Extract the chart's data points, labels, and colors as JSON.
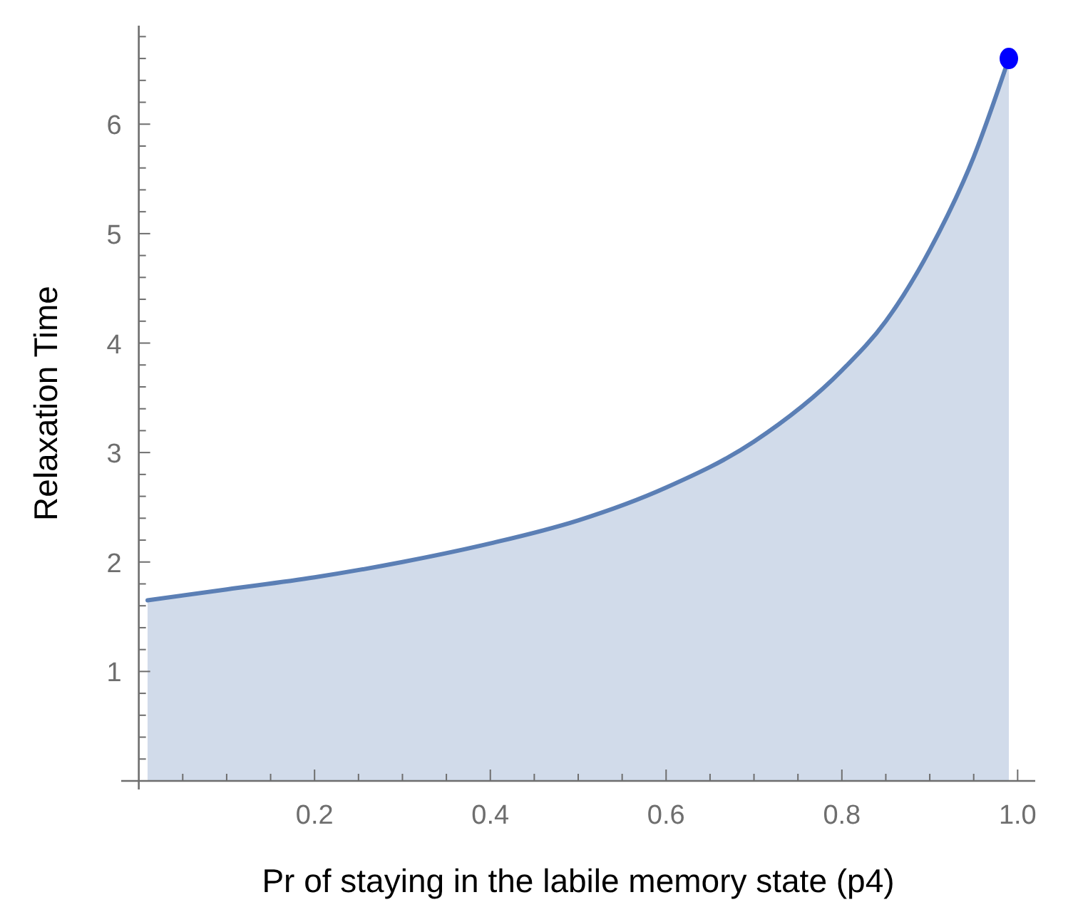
{
  "chart_data": {
    "type": "area",
    "xlabel": "Pr of staying in the labile memory state (p4)",
    "ylabel": "Relaxation Time",
    "xlim": [
      -0.02,
      1.02
    ],
    "ylim": [
      0,
      6.9
    ],
    "xticks": [
      {
        "value": 0.05,
        "label": null
      },
      {
        "value": 0.1,
        "label": null
      },
      {
        "value": 0.15,
        "label": null
      },
      {
        "value": 0.2,
        "label": "0.2"
      },
      {
        "value": 0.25,
        "label": null
      },
      {
        "value": 0.3,
        "label": null
      },
      {
        "value": 0.35,
        "label": null
      },
      {
        "value": 0.4,
        "label": "0.4"
      },
      {
        "value": 0.45,
        "label": null
      },
      {
        "value": 0.5,
        "label": null
      },
      {
        "value": 0.55,
        "label": null
      },
      {
        "value": 0.6,
        "label": "0.6"
      },
      {
        "value": 0.65,
        "label": null
      },
      {
        "value": 0.7,
        "label": null
      },
      {
        "value": 0.75,
        "label": null
      },
      {
        "value": 0.8,
        "label": "0.8"
      },
      {
        "value": 0.85,
        "label": null
      },
      {
        "value": 0.9,
        "label": null
      },
      {
        "value": 0.95,
        "label": null
      },
      {
        "value": 1.0,
        "label": "1.0"
      }
    ],
    "yticks": [
      {
        "value": 0.2,
        "label": null
      },
      {
        "value": 0.4,
        "label": null
      },
      {
        "value": 0.6,
        "label": null
      },
      {
        "value": 0.8,
        "label": null
      },
      1,
      {
        "value": 1.2,
        "label": null
      },
      {
        "value": 1.4,
        "label": null
      },
      {
        "value": 1.6,
        "label": null
      },
      {
        "value": 1.8,
        "label": null
      },
      2,
      {
        "value": 2.2,
        "label": null
      },
      {
        "value": 2.4,
        "label": null
      },
      {
        "value": 2.6,
        "label": null
      },
      {
        "value": 2.8,
        "label": null
      },
      3,
      {
        "value": 3.2,
        "label": null
      },
      {
        "value": 3.4,
        "label": null
      },
      {
        "value": 3.6,
        "label": null
      },
      {
        "value": 3.8,
        "label": null
      },
      4,
      {
        "value": 4.2,
        "label": null
      },
      {
        "value": 4.4,
        "label": null
      },
      {
        "value": 4.6,
        "label": null
      },
      {
        "value": 4.8,
        "label": null
      },
      5,
      {
        "value": 5.2,
        "label": null
      },
      {
        "value": 5.4,
        "label": null
      },
      {
        "value": 5.6,
        "label": null
      },
      {
        "value": 5.8,
        "label": null
      },
      6,
      {
        "value": 6.2,
        "label": null
      },
      {
        "value": 6.4,
        "label": null
      },
      {
        "value": 6.6,
        "label": null
      },
      {
        "value": 6.8,
        "label": null
      }
    ],
    "series": [
      {
        "color": "#5b7fb5",
        "x": [
          0.01,
          0.1,
          0.2,
          0.3,
          0.4,
          0.5,
          0.6,
          0.7,
          0.8,
          0.85,
          0.9,
          0.95,
          0.99
        ],
        "values": [
          1.65,
          1.75,
          1.86,
          2.0,
          2.17,
          2.38,
          2.68,
          3.1,
          3.75,
          4.2,
          4.85,
          5.7,
          6.6
        ]
      },
      {
        "type": "scatter",
        "color": "#0000ff",
        "x": [
          0.99
        ],
        "values": [
          6.6
        ]
      }
    ]
  }
}
